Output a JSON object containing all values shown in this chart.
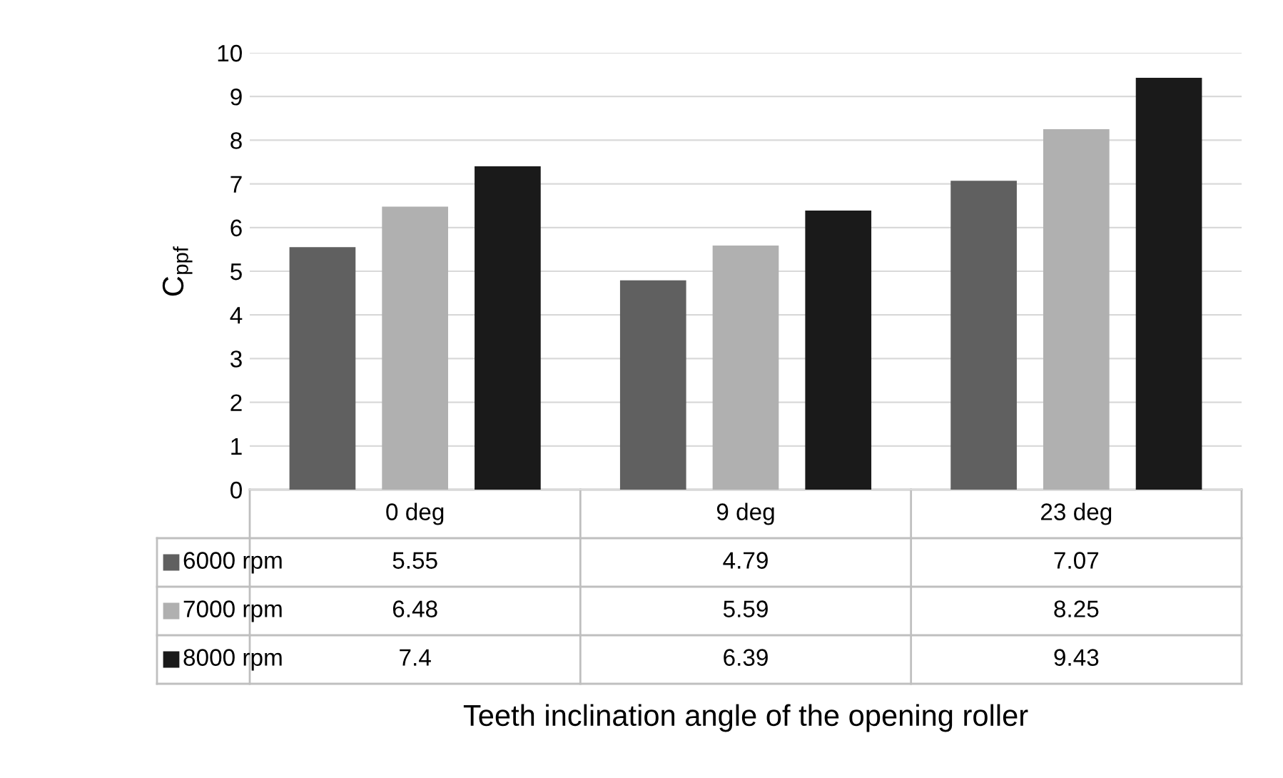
{
  "chart_data": {
    "type": "bar",
    "ylabel": "C$_{ppf}$",
    "annotations": [
      "Teeth inclination angle of the opening roller"
    ],
    "categories": [
      "0 deg",
      "9 deg",
      "23 deg"
    ],
    "series": [
      {
        "name": "6000 rpm",
        "color": "#606060",
        "values": [
          5.55,
          4.79,
          7.07
        ]
      },
      {
        "name": "7000 rpm",
        "color": "#b0b0b0",
        "values": [
          6.48,
          5.59,
          8.25
        ]
      },
      {
        "name": "8000 rpm",
        "color": "#1a1a1a",
        "values": [
          7.4,
          6.39,
          9.43
        ]
      }
    ],
    "ylim": [
      0,
      10
    ],
    "yticks": [
      0,
      1,
      2,
      3,
      4,
      5,
      6,
      7,
      8,
      9,
      10
    ],
    "grid": "y",
    "legend": "bottom left",
    "data_labels": true
  }
}
